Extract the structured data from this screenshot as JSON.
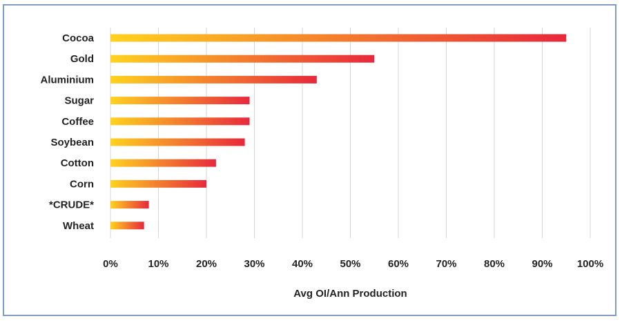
{
  "chart_data": {
    "type": "bar",
    "orientation": "horizontal",
    "categories": [
      "Cocoa",
      "Gold",
      "Aluminium",
      "Sugar",
      "Coffee",
      "Soybean",
      "Cotton",
      "Corn",
      "*CRUDE*",
      "Wheat"
    ],
    "values": [
      95,
      55,
      43,
      29,
      29,
      28,
      22,
      20,
      8,
      7
    ],
    "xlabel": "Avg OI/Ann Production",
    "ylabel": "",
    "title": "",
    "xlim": [
      0,
      100
    ],
    "xticks": [
      "0%",
      "10%",
      "20%",
      "30%",
      "40%",
      "50%",
      "60%",
      "70%",
      "80%",
      "90%",
      "100%"
    ],
    "grid": true,
    "legend": "none",
    "colors": {
      "bar_start": "#ffd21f",
      "bar_end": "#e8283c",
      "grid": "#d4d4d4",
      "frame": "#7f9bc2"
    }
  }
}
